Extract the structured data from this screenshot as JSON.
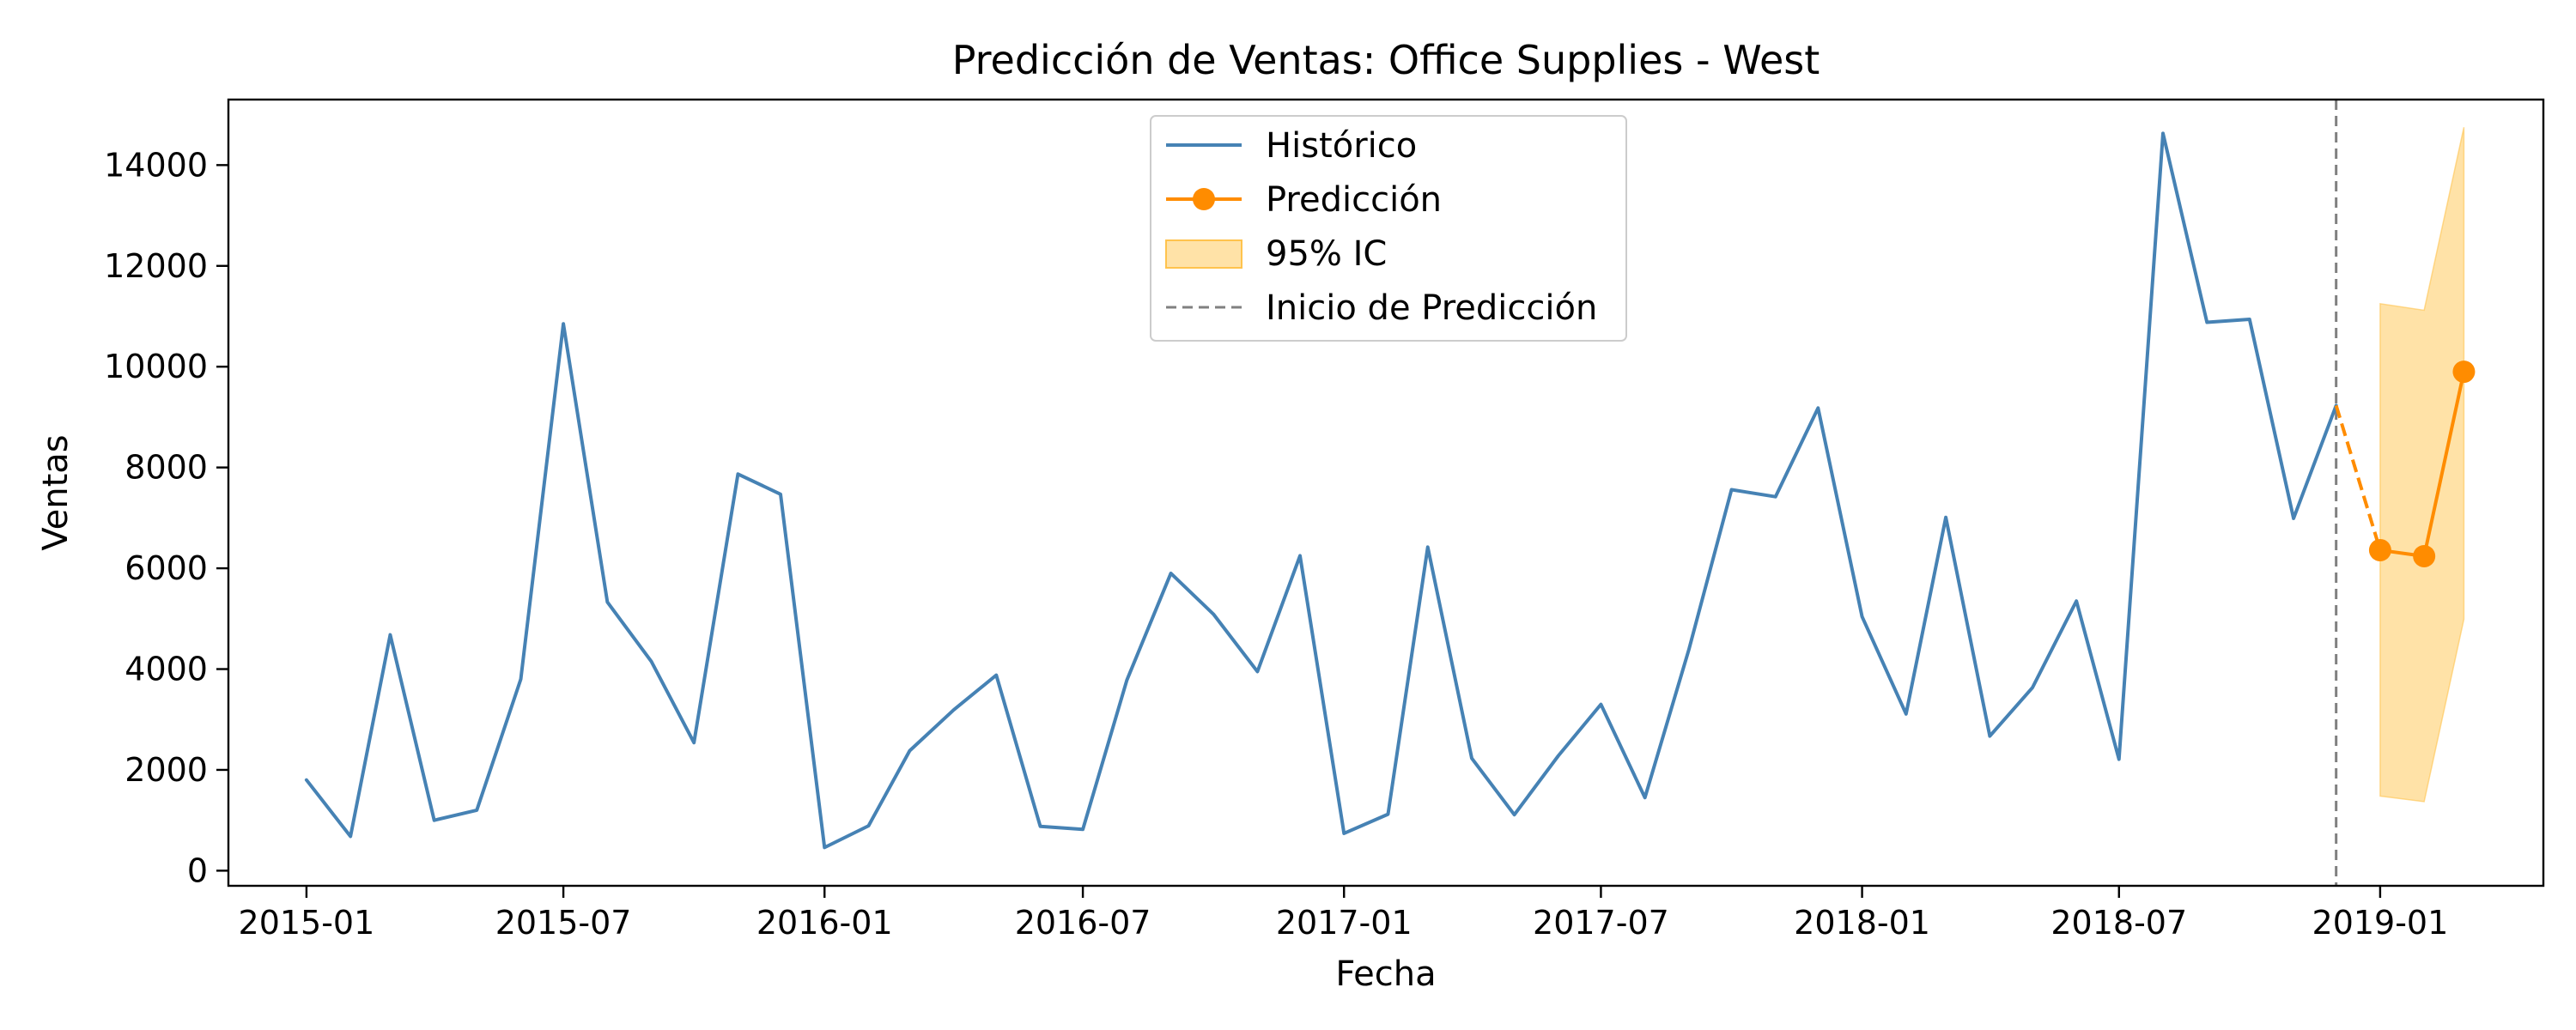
{
  "chart_data": {
    "type": "line",
    "title": "Predicción de Ventas: Office Supplies - West",
    "xlabel": "Fecha",
    "ylabel": "Ventas",
    "xlim": [
      "2014-11-07",
      "2019-04-26"
    ],
    "ylim": [
      -300,
      15300
    ],
    "xticks": [
      "2015-01",
      "2015-07",
      "2016-01",
      "2016-07",
      "2017-01",
      "2017-07",
      "2018-01",
      "2018-07",
      "2019-01"
    ],
    "yticks": [
      0,
      2000,
      4000,
      6000,
      8000,
      10000,
      12000,
      14000
    ],
    "grid": false,
    "legend_position": "top-center",
    "prediction_start": "2018-12-01",
    "series": [
      {
        "name": "Histórico",
        "style": "line",
        "color": "#4682b4",
        "x": [
          "2015-01-01",
          "2015-02-01",
          "2015-03-01",
          "2015-04-01",
          "2015-05-01",
          "2015-06-01",
          "2015-07-01",
          "2015-08-01",
          "2015-09-01",
          "2015-10-01",
          "2015-11-01",
          "2015-12-01",
          "2016-01-01",
          "2016-02-01",
          "2016-03-01",
          "2016-04-01",
          "2016-05-01",
          "2016-06-01",
          "2016-07-01",
          "2016-08-01",
          "2016-09-01",
          "2016-10-01",
          "2016-11-01",
          "2016-12-01",
          "2017-01-01",
          "2017-02-01",
          "2017-03-01",
          "2017-04-01",
          "2017-05-01",
          "2017-06-01",
          "2017-07-01",
          "2017-08-01",
          "2017-09-01",
          "2017-10-01",
          "2017-11-01",
          "2017-12-01",
          "2018-01-01",
          "2018-02-01",
          "2018-03-01",
          "2018-04-01",
          "2018-05-01",
          "2018-06-01",
          "2018-07-01",
          "2018-08-01",
          "2018-09-01",
          "2018-10-01",
          "2018-11-01",
          "2018-12-01"
        ],
        "values": [
          1800,
          680,
          4680,
          1000,
          1200,
          3800,
          10850,
          5330,
          4150,
          2540,
          7870,
          7470,
          460,
          890,
          2380,
          3190,
          3880,
          880,
          820,
          3780,
          5900,
          5090,
          3950,
          6250,
          740,
          1120,
          6420,
          2230,
          1110,
          2280,
          3300,
          1450,
          4390,
          7560,
          7420,
          9180,
          5040,
          3110,
          7010,
          2670,
          3630,
          5350,
          2210,
          14630,
          10880,
          10940,
          6990,
          9230
        ]
      },
      {
        "name": "Predicción",
        "style": "line-marker",
        "color": "#ff8c00",
        "x": [
          "2019-01-01",
          "2019-02-01",
          "2019-03-01"
        ],
        "values": [
          6360,
          6240,
          9900
        ]
      },
      {
        "name": "95% IC",
        "style": "band",
        "color": "#ffd88a",
        "x": [
          "2019-01-01",
          "2019-02-01",
          "2019-03-01"
        ],
        "lower": [
          1480,
          1370,
          4990
        ],
        "upper": [
          11250,
          11120,
          14750
        ]
      },
      {
        "name": "Inicio de Predicción",
        "style": "vline",
        "color": "#808080"
      }
    ]
  }
}
